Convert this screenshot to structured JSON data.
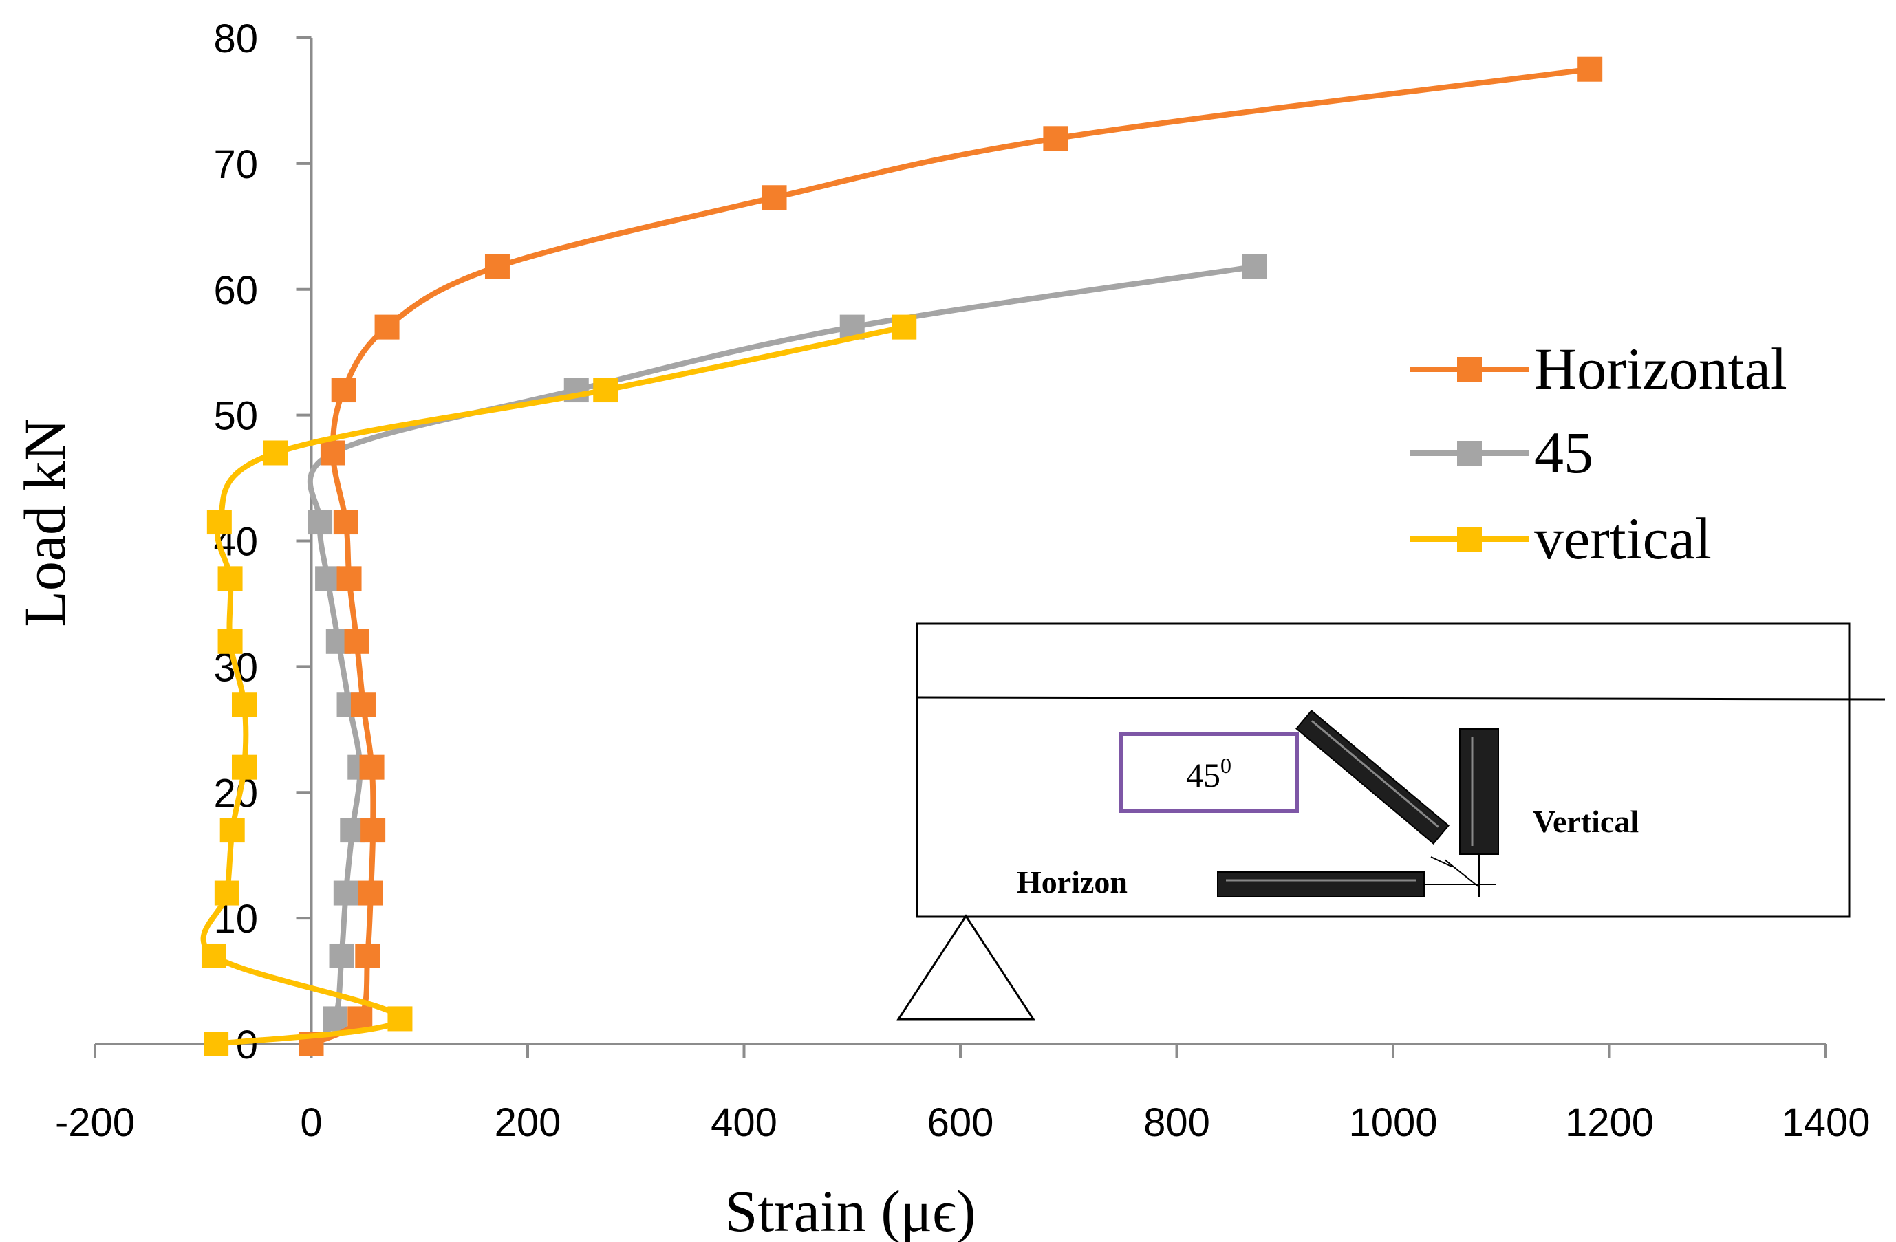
{
  "chart_data": {
    "type": "line",
    "title": "",
    "xlabel": "Strain (μϵ)",
    "ylabel": "Load kN",
    "xlim": [
      -200,
      1400
    ],
    "ylim": [
      0,
      80
    ],
    "x_ticks": [
      -200,
      0,
      200,
      400,
      600,
      800,
      1000,
      1200,
      1400
    ],
    "y_ticks": [
      0,
      10,
      20,
      30,
      40,
      50,
      60,
      70,
      80
    ],
    "grid": false,
    "legend_position": "right",
    "series": [
      {
        "name": "Horizontal",
        "color": "#f47f2a",
        "points": [
          {
            "x": 0,
            "y": 0
          },
          {
            "x": 45,
            "y": 2
          },
          {
            "x": 52,
            "y": 7
          },
          {
            "x": 55,
            "y": 12
          },
          {
            "x": 57,
            "y": 17
          },
          {
            "x": 56,
            "y": 22
          },
          {
            "x": 48,
            "y": 27
          },
          {
            "x": 42,
            "y": 32
          },
          {
            "x": 35,
            "y": 37
          },
          {
            "x": 32,
            "y": 41.5
          },
          {
            "x": 20,
            "y": 47
          },
          {
            "x": 30,
            "y": 52
          },
          {
            "x": 70,
            "y": 57
          },
          {
            "x": 172,
            "y": 61.8
          },
          {
            "x": 428,
            "y": 67.3
          },
          {
            "x": 688,
            "y": 72
          },
          {
            "x": 1182,
            "y": 77.5
          }
        ]
      },
      {
        "name": "45",
        "color": "#a5a5a5",
        "points": [
          {
            "x": 0,
            "y": 0
          },
          {
            "x": 22,
            "y": 2
          },
          {
            "x": 28,
            "y": 7
          },
          {
            "x": 32,
            "y": 12
          },
          {
            "x": 38,
            "y": 17
          },
          {
            "x": 45,
            "y": 22
          },
          {
            "x": 35,
            "y": 27
          },
          {
            "x": 25,
            "y": 32
          },
          {
            "x": 15,
            "y": 37
          },
          {
            "x": 8,
            "y": 41.5
          },
          {
            "x": 20,
            "y": 47
          },
          {
            "x": 245,
            "y": 52
          },
          {
            "x": 500,
            "y": 57
          },
          {
            "x": 872,
            "y": 61.8
          }
        ]
      },
      {
        "name": "vertical",
        "color": "#ffc000",
        "points": [
          {
            "x": -88,
            "y": 0
          },
          {
            "x": 82,
            "y": 2
          },
          {
            "x": -90,
            "y": 7
          },
          {
            "x": -78,
            "y": 12
          },
          {
            "x": -73,
            "y": 17
          },
          {
            "x": -62,
            "y": 22
          },
          {
            "x": -62,
            "y": 27
          },
          {
            "x": -75,
            "y": 32
          },
          {
            "x": -75,
            "y": 37
          },
          {
            "x": -85,
            "y": 41.5
          },
          {
            "x": -33,
            "y": 47
          },
          {
            "x": 272,
            "y": 52
          },
          {
            "x": 548,
            "y": 57
          }
        ]
      }
    ],
    "inset": {
      "angle_label": "45",
      "angle_superscript": "0",
      "vertical_label": "Vertical",
      "horizon_label": "Horizon",
      "box_border_color": "#7e57a6"
    }
  }
}
